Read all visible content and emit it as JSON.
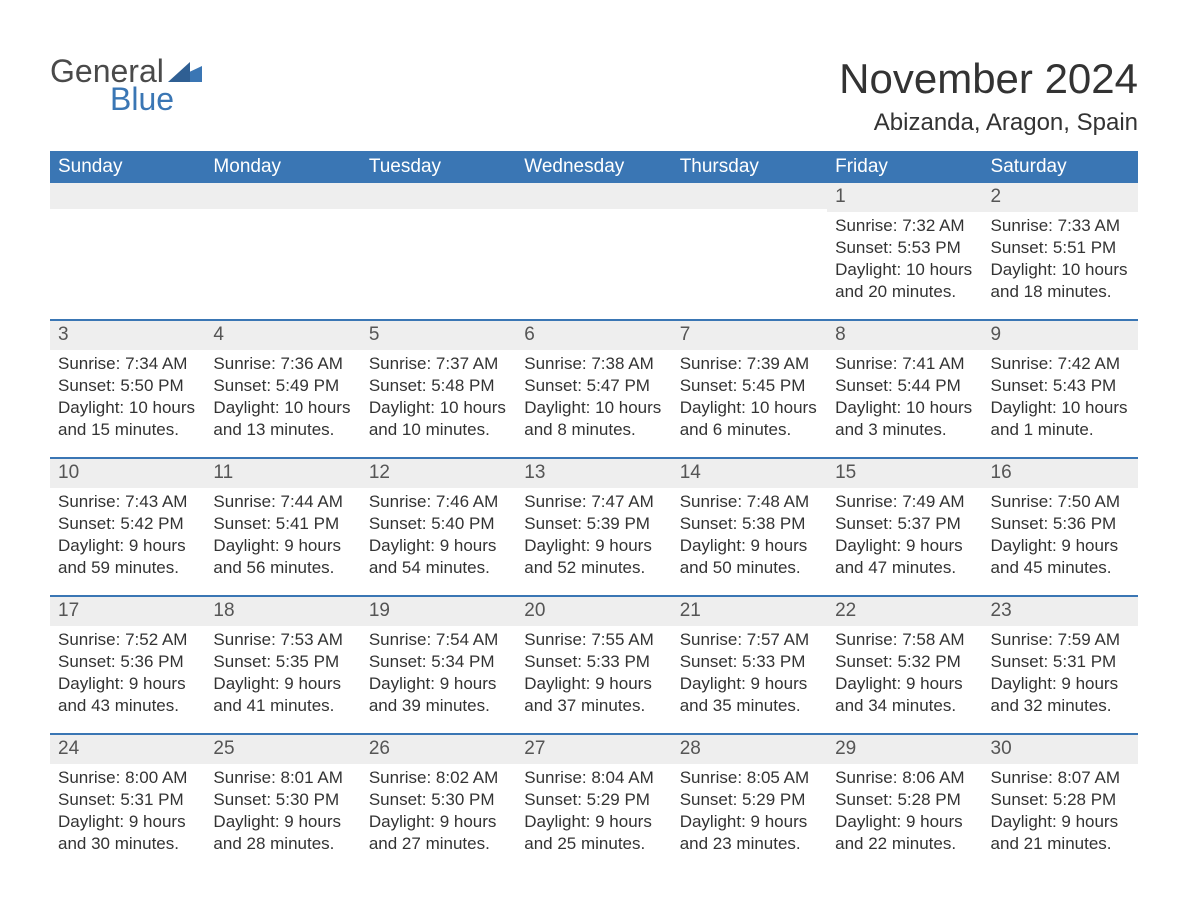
{
  "brand": {
    "general": "General",
    "blue": "Blue"
  },
  "title": "November 2024",
  "location": "Abizanda, Aragon, Spain",
  "colors": {
    "accent": "#3a76b4",
    "header_bg": "#3a76b4",
    "header_text": "#ffffff",
    "stripe": "#eeeeee",
    "text": "#333333",
    "background": "#ffffff"
  },
  "day_headers": [
    "Sunday",
    "Monday",
    "Tuesday",
    "Wednesday",
    "Thursday",
    "Friday",
    "Saturday"
  ],
  "weeks": [
    [
      null,
      null,
      null,
      null,
      null,
      {
        "day": "1",
        "sunrise": "Sunrise: 7:32 AM",
        "sunset": "Sunset: 5:53 PM",
        "daylight": "Daylight: 10 hours and 20 minutes."
      },
      {
        "day": "2",
        "sunrise": "Sunrise: 7:33 AM",
        "sunset": "Sunset: 5:51 PM",
        "daylight": "Daylight: 10 hours and 18 minutes."
      }
    ],
    [
      {
        "day": "3",
        "sunrise": "Sunrise: 7:34 AM",
        "sunset": "Sunset: 5:50 PM",
        "daylight": "Daylight: 10 hours and 15 minutes."
      },
      {
        "day": "4",
        "sunrise": "Sunrise: 7:36 AM",
        "sunset": "Sunset: 5:49 PM",
        "daylight": "Daylight: 10 hours and 13 minutes."
      },
      {
        "day": "5",
        "sunrise": "Sunrise: 7:37 AM",
        "sunset": "Sunset: 5:48 PM",
        "daylight": "Daylight: 10 hours and 10 minutes."
      },
      {
        "day": "6",
        "sunrise": "Sunrise: 7:38 AM",
        "sunset": "Sunset: 5:47 PM",
        "daylight": "Daylight: 10 hours and 8 minutes."
      },
      {
        "day": "7",
        "sunrise": "Sunrise: 7:39 AM",
        "sunset": "Sunset: 5:45 PM",
        "daylight": "Daylight: 10 hours and 6 minutes."
      },
      {
        "day": "8",
        "sunrise": "Sunrise: 7:41 AM",
        "sunset": "Sunset: 5:44 PM",
        "daylight": "Daylight: 10 hours and 3 minutes."
      },
      {
        "day": "9",
        "sunrise": "Sunrise: 7:42 AM",
        "sunset": "Sunset: 5:43 PM",
        "daylight": "Daylight: 10 hours and 1 minute."
      }
    ],
    [
      {
        "day": "10",
        "sunrise": "Sunrise: 7:43 AM",
        "sunset": "Sunset: 5:42 PM",
        "daylight": "Daylight: 9 hours and 59 minutes."
      },
      {
        "day": "11",
        "sunrise": "Sunrise: 7:44 AM",
        "sunset": "Sunset: 5:41 PM",
        "daylight": "Daylight: 9 hours and 56 minutes."
      },
      {
        "day": "12",
        "sunrise": "Sunrise: 7:46 AM",
        "sunset": "Sunset: 5:40 PM",
        "daylight": "Daylight: 9 hours and 54 minutes."
      },
      {
        "day": "13",
        "sunrise": "Sunrise: 7:47 AM",
        "sunset": "Sunset: 5:39 PM",
        "daylight": "Daylight: 9 hours and 52 minutes."
      },
      {
        "day": "14",
        "sunrise": "Sunrise: 7:48 AM",
        "sunset": "Sunset: 5:38 PM",
        "daylight": "Daylight: 9 hours and 50 minutes."
      },
      {
        "day": "15",
        "sunrise": "Sunrise: 7:49 AM",
        "sunset": "Sunset: 5:37 PM",
        "daylight": "Daylight: 9 hours and 47 minutes."
      },
      {
        "day": "16",
        "sunrise": "Sunrise: 7:50 AM",
        "sunset": "Sunset: 5:36 PM",
        "daylight": "Daylight: 9 hours and 45 minutes."
      }
    ],
    [
      {
        "day": "17",
        "sunrise": "Sunrise: 7:52 AM",
        "sunset": "Sunset: 5:36 PM",
        "daylight": "Daylight: 9 hours and 43 minutes."
      },
      {
        "day": "18",
        "sunrise": "Sunrise: 7:53 AM",
        "sunset": "Sunset: 5:35 PM",
        "daylight": "Daylight: 9 hours and 41 minutes."
      },
      {
        "day": "19",
        "sunrise": "Sunrise: 7:54 AM",
        "sunset": "Sunset: 5:34 PM",
        "daylight": "Daylight: 9 hours and 39 minutes."
      },
      {
        "day": "20",
        "sunrise": "Sunrise: 7:55 AM",
        "sunset": "Sunset: 5:33 PM",
        "daylight": "Daylight: 9 hours and 37 minutes."
      },
      {
        "day": "21",
        "sunrise": "Sunrise: 7:57 AM",
        "sunset": "Sunset: 5:33 PM",
        "daylight": "Daylight: 9 hours and 35 minutes."
      },
      {
        "day": "22",
        "sunrise": "Sunrise: 7:58 AM",
        "sunset": "Sunset: 5:32 PM",
        "daylight": "Daylight: 9 hours and 34 minutes."
      },
      {
        "day": "23",
        "sunrise": "Sunrise: 7:59 AM",
        "sunset": "Sunset: 5:31 PM",
        "daylight": "Daylight: 9 hours and 32 minutes."
      }
    ],
    [
      {
        "day": "24",
        "sunrise": "Sunrise: 8:00 AM",
        "sunset": "Sunset: 5:31 PM",
        "daylight": "Daylight: 9 hours and 30 minutes."
      },
      {
        "day": "25",
        "sunrise": "Sunrise: 8:01 AM",
        "sunset": "Sunset: 5:30 PM",
        "daylight": "Daylight: 9 hours and 28 minutes."
      },
      {
        "day": "26",
        "sunrise": "Sunrise: 8:02 AM",
        "sunset": "Sunset: 5:30 PM",
        "daylight": "Daylight: 9 hours and 27 minutes."
      },
      {
        "day": "27",
        "sunrise": "Sunrise: 8:04 AM",
        "sunset": "Sunset: 5:29 PM",
        "daylight": "Daylight: 9 hours and 25 minutes."
      },
      {
        "day": "28",
        "sunrise": "Sunrise: 8:05 AM",
        "sunset": "Sunset: 5:29 PM",
        "daylight": "Daylight: 9 hours and 23 minutes."
      },
      {
        "day": "29",
        "sunrise": "Sunrise: 8:06 AM",
        "sunset": "Sunset: 5:28 PM",
        "daylight": "Daylight: 9 hours and 22 minutes."
      },
      {
        "day": "30",
        "sunrise": "Sunrise: 8:07 AM",
        "sunset": "Sunset: 5:28 PM",
        "daylight": "Daylight: 9 hours and 21 minutes."
      }
    ]
  ]
}
